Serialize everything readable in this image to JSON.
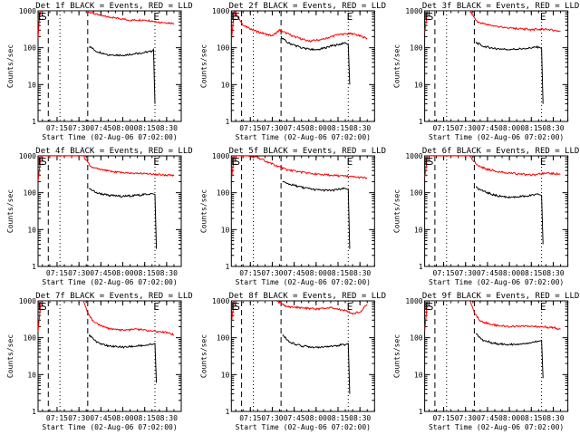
{
  "chart_data": [
    {
      "type": "line",
      "title": "Det 1f BLACK = Events, RED = LLD",
      "xlabel": "Start Time (02-Aug-06 07:02:00)",
      "ylabel": "Counts/sec",
      "x_ticks": [
        "07:15",
        "07:30",
        "07:45",
        "08:00",
        "08:15",
        "08:30"
      ],
      "y_ticks": [
        "1",
        "10",
        "100",
        "1000"
      ],
      "ylim": [
        1,
        1000
      ],
      "log_y": true,
      "markers": [
        {
          "label": "E",
          "time": "07:04"
        },
        {
          "label": "S",
          "time": "07:06"
        },
        {
          "label": "E",
          "time": "08:23"
        }
      ],
      "series": [
        {
          "color": "red",
          "points": [
            [
              "07:02",
              180
            ],
            [
              "07:03",
              700
            ],
            [
              "07:04",
              1000
            ],
            [
              "07:35",
              1000
            ],
            [
              "07:38",
              900
            ],
            [
              "07:45",
              730
            ],
            [
              "07:55",
              650
            ],
            [
              "08:05",
              560
            ],
            [
              "08:15",
              570
            ],
            [
              "08:25",
              500
            ],
            [
              "08:35",
              460
            ]
          ]
        },
        {
          "color": "black",
          "points": [
            [
              "07:37",
              110
            ],
            [
              "07:42",
              80
            ],
            [
              "07:50",
              65
            ],
            [
              "08:00",
              63
            ],
            [
              "08:10",
              70
            ],
            [
              "08:20",
              80
            ],
            [
              "08:21",
              90
            ],
            [
              "08:22",
              3
            ]
          ]
        }
      ]
    },
    {
      "type": "line",
      "title": "Det 2f BLACK = Events, RED = LLD",
      "xlabel": "Start Time (02-Aug-06 07:02:00)",
      "ylabel": "Counts/sec",
      "x_ticks": [
        "07:15",
        "07:30",
        "07:45",
        "08:00",
        "08:15",
        "08:30"
      ],
      "y_ticks": [
        "1",
        "10",
        "100",
        "1000"
      ],
      "ylim": [
        1,
        1000
      ],
      "log_y": true,
      "markers": [
        {
          "label": "E",
          "time": "07:04"
        },
        {
          "label": "S",
          "time": "07:06"
        },
        {
          "label": "E",
          "time": "08:23"
        }
      ],
      "series": [
        {
          "color": "red",
          "points": [
            [
              "07:02",
              150
            ],
            [
              "07:04",
              1000
            ],
            [
              "07:10",
              400
            ],
            [
              "07:20",
              270
            ],
            [
              "07:30",
              210
            ],
            [
              "07:35",
              300
            ],
            [
              "07:45",
              200
            ],
            [
              "07:55",
              150
            ],
            [
              "08:05",
              170
            ],
            [
              "08:15",
              230
            ],
            [
              "08:25",
              240
            ],
            [
              "08:35",
              180
            ]
          ]
        },
        {
          "color": "black",
          "points": [
            [
              "07:36",
              200
            ],
            [
              "07:40",
              140
            ],
            [
              "07:50",
              100
            ],
            [
              "08:00",
              85
            ],
            [
              "08:10",
              110
            ],
            [
              "08:20",
              135
            ],
            [
              "08:22",
              120
            ],
            [
              "08:23",
              10
            ]
          ]
        }
      ]
    },
    {
      "type": "line",
      "title": "Det 3f BLACK = Events, RED = LLD",
      "xlabel": "Start Time (02-Aug-06 07:02:00)",
      "ylabel": "Counts/sec",
      "x_ticks": [
        "07:15",
        "07:30",
        "07:45",
        "08:00",
        "08:15",
        "08:30"
      ],
      "y_ticks": [
        "1",
        "10",
        "100",
        "1000"
      ],
      "ylim": [
        1,
        1000
      ],
      "log_y": true,
      "markers": [
        {
          "label": "E",
          "time": "07:04"
        },
        {
          "label": "S",
          "time": "07:06"
        },
        {
          "label": "E",
          "time": "08:23"
        }
      ],
      "series": [
        {
          "color": "red",
          "points": [
            [
              "07:02",
              250
            ],
            [
              "07:04",
              1000
            ],
            [
              "07:33",
              1000
            ],
            [
              "07:38",
              500
            ],
            [
              "07:45",
              420
            ],
            [
              "07:55",
              360
            ],
            [
              "08:05",
              330
            ],
            [
              "08:15",
              310
            ],
            [
              "08:25",
              320
            ],
            [
              "08:35",
              280
            ]
          ]
        },
        {
          "color": "black",
          "points": [
            [
              "07:37",
              140
            ],
            [
              "07:42",
              110
            ],
            [
              "07:50",
              95
            ],
            [
              "08:00",
              90
            ],
            [
              "08:10",
              95
            ],
            [
              "08:20",
              105
            ],
            [
              "08:22",
              95
            ],
            [
              "08:23",
              3
            ]
          ]
        }
      ]
    },
    {
      "type": "line",
      "title": "Det 4f BLACK = Events, RED = LLD",
      "xlabel": "Start Time (02-Aug-06 07:02:00)",
      "ylabel": "Counts/sec",
      "x_ticks": [
        "07:15",
        "07:30",
        "07:45",
        "08:00",
        "08:15",
        "08:30"
      ],
      "y_ticks": [
        "1",
        "10",
        "100",
        "1000"
      ],
      "ylim": [
        1,
        1000
      ],
      "log_y": true,
      "markers": [
        {
          "label": "E",
          "time": "07:04"
        },
        {
          "label": "S",
          "time": "07:06"
        },
        {
          "label": "E",
          "time": "08:23"
        }
      ],
      "series": [
        {
          "color": "red",
          "points": [
            [
              "07:02",
              200
            ],
            [
              "07:04",
              1000
            ],
            [
              "07:33",
              1000
            ],
            [
              "07:38",
              500
            ],
            [
              "07:45",
              420
            ],
            [
              "07:55",
              360
            ],
            [
              "08:05",
              340
            ],
            [
              "08:15",
              330
            ],
            [
              "08:25",
              310
            ],
            [
              "08:35",
              290
            ]
          ]
        },
        {
          "color": "black",
          "points": [
            [
              "07:37",
              130
            ],
            [
              "07:42",
              100
            ],
            [
              "07:50",
              85
            ],
            [
              "08:00",
              80
            ],
            [
              "08:10",
              85
            ],
            [
              "08:20",
              95
            ],
            [
              "08:22",
              90
            ],
            [
              "08:23",
              3
            ]
          ]
        }
      ]
    },
    {
      "type": "line",
      "title": "Det 5f BLACK = Events, RED = LLD",
      "xlabel": "Start Time (02-Aug-06 07:02:00)",
      "ylabel": "Counts/sec",
      "x_ticks": [
        "07:15",
        "07:30",
        "07:45",
        "08:00",
        "08:15",
        "08:30"
      ],
      "y_ticks": [
        "1",
        "10",
        "100",
        "1000"
      ],
      "ylim": [
        1,
        1000
      ],
      "log_y": true,
      "markers": [
        {
          "label": "E",
          "time": "07:04"
        },
        {
          "label": "S",
          "time": "07:06"
        },
        {
          "label": "E",
          "time": "08:23"
        }
      ],
      "series": [
        {
          "color": "red",
          "points": [
            [
              "07:02",
              220
            ],
            [
              "07:04",
              1000
            ],
            [
              "07:12",
              1000
            ],
            [
              "07:20",
              900
            ],
            [
              "07:30",
              600
            ],
            [
              "07:40",
              420
            ],
            [
              "07:50",
              360
            ],
            [
              "08:00",
              320
            ],
            [
              "08:10",
              300
            ],
            [
              "08:20",
              280
            ],
            [
              "08:35",
              250
            ]
          ]
        },
        {
          "color": "black",
          "points": [
            [
              "07:37",
              200
            ],
            [
              "07:42",
              170
            ],
            [
              "07:50",
              140
            ],
            [
              "08:00",
              120
            ],
            [
              "08:10",
              115
            ],
            [
              "08:20",
              130
            ],
            [
              "08:22",
              120
            ],
            [
              "08:23",
              3
            ]
          ]
        }
      ]
    },
    {
      "type": "line",
      "title": "Det 6f BLACK = Events, RED = LLD",
      "xlabel": "Start Time (02-Aug-06 07:02:00)",
      "ylabel": "Counts/sec",
      "x_ticks": [
        "07:15",
        "07:30",
        "07:45",
        "08:00",
        "08:15",
        "08:30"
      ],
      "y_ticks": [
        "1",
        "10",
        "100",
        "1000"
      ],
      "ylim": [
        1,
        1000
      ],
      "log_y": true,
      "markers": [
        {
          "label": "E",
          "time": "07:04"
        },
        {
          "label": "S",
          "time": "07:06"
        },
        {
          "label": "E",
          "time": "08:23"
        }
      ],
      "series": [
        {
          "color": "red",
          "points": [
            [
              "07:02",
              250
            ],
            [
              "07:04",
              1000
            ],
            [
              "07:33",
              1000
            ],
            [
              "07:38",
              550
            ],
            [
              "07:45",
              430
            ],
            [
              "07:55",
              360
            ],
            [
              "08:05",
              330
            ],
            [
              "08:15",
              300
            ],
            [
              "08:25",
              340
            ],
            [
              "08:35",
              320
            ]
          ]
        },
        {
          "color": "black",
          "points": [
            [
              "07:37",
              140
            ],
            [
              "07:42",
              110
            ],
            [
              "07:50",
              85
            ],
            [
              "08:00",
              75
            ],
            [
              "08:10",
              80
            ],
            [
              "08:20",
              90
            ],
            [
              "08:22",
              85
            ],
            [
              "08:23",
              4
            ]
          ]
        }
      ]
    },
    {
      "type": "line",
      "title": "Det 7f BLACK = Events, RED = LLD",
      "xlabel": "Start Time (02-Aug-06 07:02:00)",
      "ylabel": "Counts/sec",
      "x_ticks": [
        "07:15",
        "07:30",
        "07:45",
        "08:00",
        "08:15",
        "08:30"
      ],
      "y_ticks": [
        "1",
        "10",
        "100",
        "1000"
      ],
      "ylim": [
        1,
        1000
      ],
      "log_y": true,
      "markers": [
        {
          "label": "E",
          "time": "07:04"
        },
        {
          "label": "S",
          "time": "07:06"
        },
        {
          "label": "E",
          "time": "08:23"
        }
      ],
      "series": [
        {
          "color": "red",
          "points": [
            [
              "07:02",
              150
            ],
            [
              "07:04",
              1000
            ],
            [
              "07:33",
              1000
            ],
            [
              "07:36",
              500
            ],
            [
              "07:40",
              260
            ],
            [
              "07:50",
              180
            ],
            [
              "08:00",
              160
            ],
            [
              "08:10",
              170
            ],
            [
              "08:20",
              150
            ],
            [
              "08:30",
              140
            ],
            [
              "08:35",
              120
            ]
          ]
        },
        {
          "color": "black",
          "points": [
            [
              "07:37",
              120
            ],
            [
              "07:42",
              75
            ],
            [
              "07:50",
              60
            ],
            [
              "08:00",
              55
            ],
            [
              "08:10",
              60
            ],
            [
              "08:20",
              65
            ],
            [
              "08:22",
              70
            ],
            [
              "08:23",
              6
            ]
          ]
        }
      ]
    },
    {
      "type": "line",
      "title": "Det 8f BLACK = Events, RED = LLD",
      "xlabel": "Start Time (02-Aug-06 07:02:00)",
      "ylabel": "Counts/sec",
      "x_ticks": [
        "07:15",
        "07:30",
        "07:45",
        "08:00",
        "08:15",
        "08:30"
      ],
      "y_ticks": [
        "1",
        "10",
        "100",
        "1000"
      ],
      "ylim": [
        1,
        1000
      ],
      "log_y": true,
      "markers": [
        {
          "label": "E",
          "time": "07:04"
        },
        {
          "label": "S",
          "time": "07:06"
        },
        {
          "label": "E",
          "time": "08:23"
        }
      ],
      "series": [
        {
          "color": "red",
          "points": [
            [
              "07:02",
              250
            ],
            [
              "07:04",
              1000
            ],
            [
              "07:33",
              1000
            ],
            [
              "07:40",
              700
            ],
            [
              "07:50",
              650
            ],
            [
              "08:00",
              600
            ],
            [
              "08:10",
              650
            ],
            [
              "08:20",
              550
            ],
            [
              "08:25",
              450
            ],
            [
              "08:30",
              500
            ],
            [
              "08:35",
              800
            ]
          ]
        },
        {
          "color": "black",
          "points": [
            [
              "07:37",
              120
            ],
            [
              "07:42",
              75
            ],
            [
              "07:50",
              60
            ],
            [
              "08:00",
              55
            ],
            [
              "08:10",
              60
            ],
            [
              "08:20",
              65
            ],
            [
              "08:22",
              70
            ],
            [
              "08:23",
              3
            ]
          ]
        }
      ]
    },
    {
      "type": "line",
      "title": "Det 9f BLACK = Events, RED = LLD",
      "xlabel": "Start Time (02-Aug-06 07:02:00)",
      "ylabel": "Counts/sec",
      "x_ticks": [
        "07:15",
        "07:30",
        "07:45",
        "08:00",
        "08:15",
        "08:30"
      ],
      "y_ticks": [
        "1",
        "10",
        "100",
        "1000"
      ],
      "ylim": [
        1,
        1000
      ],
      "log_y": true,
      "markers": [
        {
          "label": "E",
          "time": "07:04"
        },
        {
          "label": "S",
          "time": "07:06"
        },
        {
          "label": "E",
          "time": "08:23"
        }
      ],
      "series": [
        {
          "color": "red",
          "points": [
            [
              "07:02",
              150
            ],
            [
              "07:04",
              1000
            ],
            [
              "07:33",
              1000
            ],
            [
              "07:36",
              500
            ],
            [
              "07:40",
              280
            ],
            [
              "07:50",
              220
            ],
            [
              "08:00",
              200
            ],
            [
              "08:10",
              210
            ],
            [
              "08:20",
              200
            ],
            [
              "08:30",
              190
            ],
            [
              "08:35",
              170
            ]
          ]
        },
        {
          "color": "black",
          "points": [
            [
              "07:37",
              130
            ],
            [
              "07:42",
              85
            ],
            [
              "07:50",
              70
            ],
            [
              "08:00",
              65
            ],
            [
              "08:10",
              70
            ],
            [
              "08:20",
              80
            ],
            [
              "08:22",
              85
            ],
            [
              "08:23",
              8
            ]
          ]
        }
      ]
    }
  ],
  "colors": {
    "lld": "#ff0000",
    "events": "#000000"
  }
}
